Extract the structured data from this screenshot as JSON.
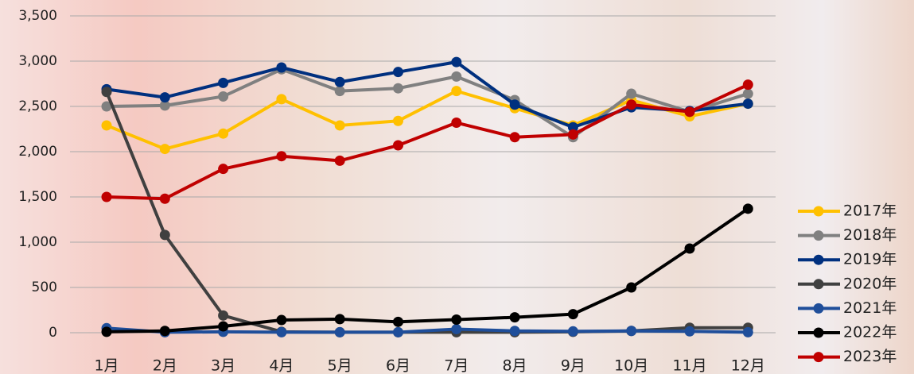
{
  "chart_data": {
    "type": "line",
    "categories": [
      "1月",
      "2月",
      "3月",
      "4月",
      "5月",
      "6月",
      "7月",
      "8月",
      "9月",
      "10月",
      "11月",
      "12月"
    ],
    "series": [
      {
        "name": "2017年",
        "color": "#ffc000",
        "values": [
          2290,
          2030,
          2200,
          2580,
          2290,
          2340,
          2670,
          2480,
          2290,
          2570,
          2390,
          2530
        ]
      },
      {
        "name": "2018年",
        "color": "#808080",
        "values": [
          2500,
          2510,
          2610,
          2910,
          2670,
          2700,
          2830,
          2570,
          2160,
          2640,
          2440,
          2640
        ]
      },
      {
        "name": "2019年",
        "color": "#00307f",
        "values": [
          2690,
          2600,
          2760,
          2930,
          2770,
          2880,
          2990,
          2520,
          2270,
          2490,
          2450,
          2530
        ]
      },
      {
        "name": "2020年",
        "color": "#404040",
        "values": [
          2660,
          1080,
          190,
          10,
          5,
          5,
          5,
          5,
          10,
          20,
          55,
          55
        ]
      },
      {
        "name": "2021年",
        "color": "#1f4e9a",
        "values": [
          50,
          5,
          10,
          5,
          5,
          5,
          40,
          20,
          15,
          20,
          15,
          5
        ]
      },
      {
        "name": "2022年",
        "color": "#000000",
        "values": [
          10,
          20,
          70,
          140,
          150,
          120,
          145,
          170,
          205,
          500,
          930,
          1370
        ]
      },
      {
        "name": "2023年",
        "color": "#c00000",
        "values": [
          1500,
          1480,
          1810,
          1950,
          1900,
          2070,
          2320,
          2160,
          2190,
          2520,
          2440,
          2740
        ]
      }
    ],
    "ylim": [
      0,
      3500
    ],
    "yticks": [
      0,
      500,
      {
        "value": 1000,
        "label": "1,000"
      },
      {
        "value": 1500,
        "label": "1,500"
      },
      {
        "value": 2000,
        "label": "2,000"
      },
      {
        "value": 2500,
        "label": "2,500"
      },
      {
        "value": 3000,
        "label": "3,000"
      },
      {
        "value": 3500,
        "label": "3,500"
      }
    ],
    "grid": true,
    "legend": "right"
  }
}
